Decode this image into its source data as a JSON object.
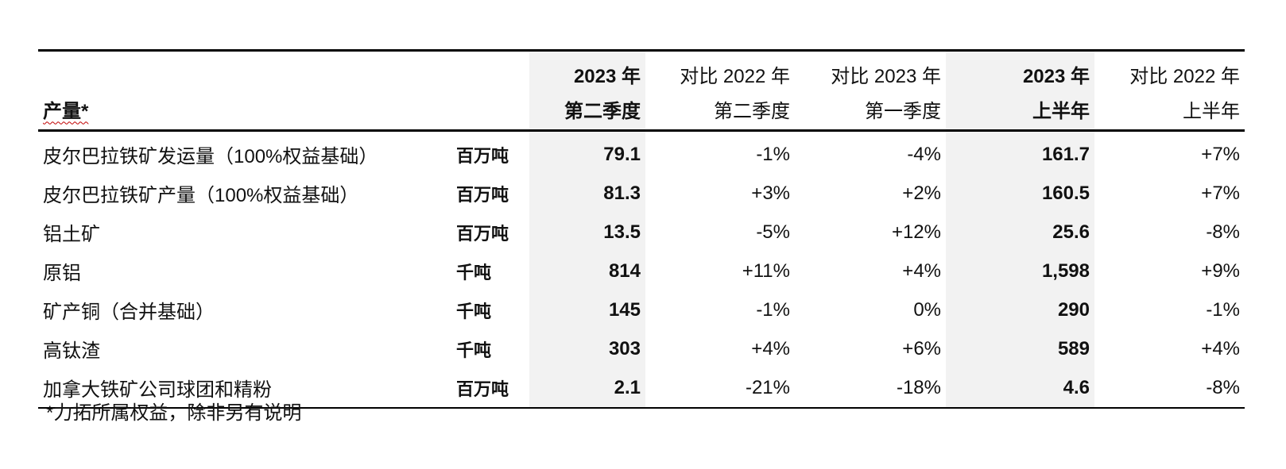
{
  "header": {
    "production_label": "产量*",
    "col_q2_line1": "2023 年",
    "col_q2_line2": "第二季度",
    "col_vs_q2_2022_line1": "对比 2022 年",
    "col_vs_q2_2022_line2": "第二季度",
    "col_vs_q1_2023_line1": "对比 2023 年",
    "col_vs_q1_2023_line2": "第一季度",
    "col_h1_line1": "2023 年",
    "col_h1_line2": "上半年",
    "col_vs_h1_2022_line1": "对比 2022 年",
    "col_vs_h1_2022_line2": "上半年"
  },
  "rows": [
    {
      "label": "皮尔巴拉铁矿发运量（100%权益基础）",
      "unit": "百万吨",
      "q2": "79.1",
      "vs_q2_2022": "-1%",
      "vs_q1_2023": "-4%",
      "h1": "161.7",
      "vs_h1_2022": "+7%"
    },
    {
      "label": "皮尔巴拉铁矿产量（100%权益基础）",
      "unit": "百万吨",
      "q2": "81.3",
      "vs_q2_2022": "+3%",
      "vs_q1_2023": "+2%",
      "h1": "160.5",
      "vs_h1_2022": "+7%"
    },
    {
      "label": "铝土矿",
      "unit": "百万吨",
      "q2": "13.5",
      "vs_q2_2022": "-5%",
      "vs_q1_2023": "+12%",
      "h1": "25.6",
      "vs_h1_2022": "-8%"
    },
    {
      "label": "原铝",
      "unit": "千吨",
      "q2": "814",
      "vs_q2_2022": "+11%",
      "vs_q1_2023": "+4%",
      "h1": "1,598",
      "vs_h1_2022": "+9%"
    },
    {
      "label": "矿产铜（合并基础）",
      "unit": "千吨",
      "q2": "145",
      "vs_q2_2022": "-1%",
      "vs_q1_2023": "0%",
      "h1": "290",
      "vs_h1_2022": "-1%"
    },
    {
      "label": "高钛渣",
      "unit": "千吨",
      "q2": "303",
      "vs_q2_2022": "+4%",
      "vs_q1_2023": "+6%",
      "h1": "589",
      "vs_h1_2022": "+4%"
    },
    {
      "label": "加拿大铁矿公司球团和精粉",
      "unit": "百万吨",
      "q2": "2.1",
      "vs_q2_2022": "-21%",
      "vs_q1_2023": "-18%",
      "h1": "4.6",
      "vs_h1_2022": "-8%"
    }
  ],
  "footnote": "*力拓所属权益，除非另有说明"
}
